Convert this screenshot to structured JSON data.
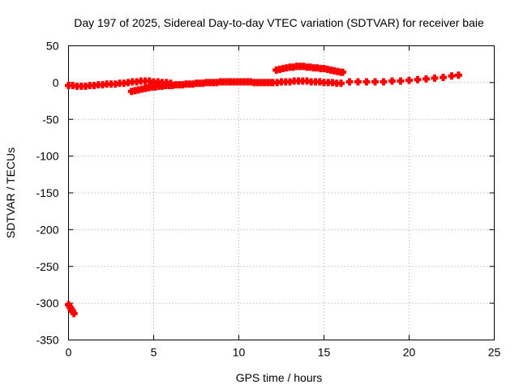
{
  "chart_data": {
    "type": "scatter",
    "title": "Day 197 of 2025, Sidereal Day-to-day VTEC variation (SDTVAR) for receiver baie",
    "xlabel": "GPS time / hours",
    "ylabel": "SDTVAR / TECUs",
    "xlim": [
      0,
      25
    ],
    "ylim": [
      -350,
      50
    ],
    "xticks": [
      "0",
      "5",
      "10",
      "15",
      "20",
      "25"
    ],
    "yticks": [
      "50",
      "0",
      "-50",
      "-100",
      "-150",
      "-200",
      "-250",
      "-300",
      "-350"
    ],
    "grid": true,
    "marker": "plus",
    "color": "#ff0000",
    "series": [
      {
        "x": [
          0.0,
          0.08,
          0.16,
          0.24,
          0.32
        ],
        "y": [
          -302,
          -305,
          -308,
          -311,
          -314
        ]
      },
      {
        "x": [
          0.0,
          0.25,
          0.5,
          0.75,
          1.0,
          1.25,
          1.5,
          1.75,
          2.0,
          2.25,
          2.5,
          2.75,
          3.0,
          3.25,
          3.5,
          3.75,
          4.0,
          4.25,
          4.5,
          4.75,
          5.0,
          5.25,
          5.5,
          5.75,
          6.0
        ],
        "y": [
          -4,
          -4,
          -5,
          -5,
          -5,
          -4,
          -4,
          -3,
          -3,
          -2,
          -2,
          -2,
          -1,
          -1,
          0,
          1,
          1,
          2,
          2,
          2,
          1,
          1,
          0,
          0,
          -1
        ]
      },
      {
        "x": [
          3.7,
          3.9,
          4.1,
          4.3,
          4.5,
          4.7,
          4.9,
          5.1,
          5.3,
          5.5,
          5.7,
          5.9,
          6.1,
          6.3,
          6.5,
          6.7,
          6.9,
          7.1,
          7.3,
          7.5,
          7.7,
          7.9,
          8.1,
          8.3,
          8.5,
          8.7,
          8.9,
          9.1,
          9.3,
          9.5,
          9.7,
          9.9,
          10.1,
          10.3,
          10.5,
          10.7,
          10.9,
          11.1,
          11.3,
          11.5,
          11.7,
          11.9
        ],
        "y": [
          -12,
          -11,
          -10,
          -9,
          -8,
          -7,
          -6,
          -6,
          -5,
          -5,
          -4,
          -4,
          -4,
          -3,
          -3,
          -3,
          -2,
          -2,
          -2,
          -1,
          -1,
          -1,
          0,
          0,
          0,
          0,
          1,
          1,
          1,
          1,
          1,
          1,
          1,
          1,
          1,
          1,
          0,
          0,
          0,
          0,
          0,
          0
        ]
      },
      {
        "x": [
          12.0,
          12.25,
          12.5,
          12.75,
          13.0,
          13.25,
          13.5,
          13.75,
          14.0,
          14.25,
          14.5,
          14.75,
          15.0,
          15.25,
          15.5,
          15.75,
          16.0
        ],
        "y": [
          0,
          0,
          1,
          1,
          1,
          2,
          2,
          2,
          2,
          1,
          1,
          1,
          0,
          0,
          0,
          -1,
          -1
        ]
      },
      {
        "x": [
          12.2,
          12.4,
          12.6,
          12.8,
          13.0,
          13.2,
          13.4,
          13.6,
          13.8,
          14.0,
          14.2,
          14.4,
          14.6,
          14.8,
          15.0,
          15.2,
          15.4,
          15.6,
          15.8,
          16.0,
          16.1
        ],
        "y": [
          17,
          18,
          19,
          20,
          21,
          21,
          22,
          22,
          22,
          21,
          21,
          20,
          20,
          19,
          19,
          18,
          17,
          16,
          15,
          14,
          14
        ]
      },
      {
        "x": [
          16.5,
          17.0,
          17.5,
          18.0,
          18.5,
          19.0,
          19.5,
          20.0,
          20.5,
          21.0,
          21.5,
          22.0,
          22.5,
          22.9
        ],
        "y": [
          1,
          1,
          1,
          1,
          1,
          2,
          2,
          3,
          4,
          5,
          6,
          7,
          9,
          10
        ]
      }
    ]
  }
}
